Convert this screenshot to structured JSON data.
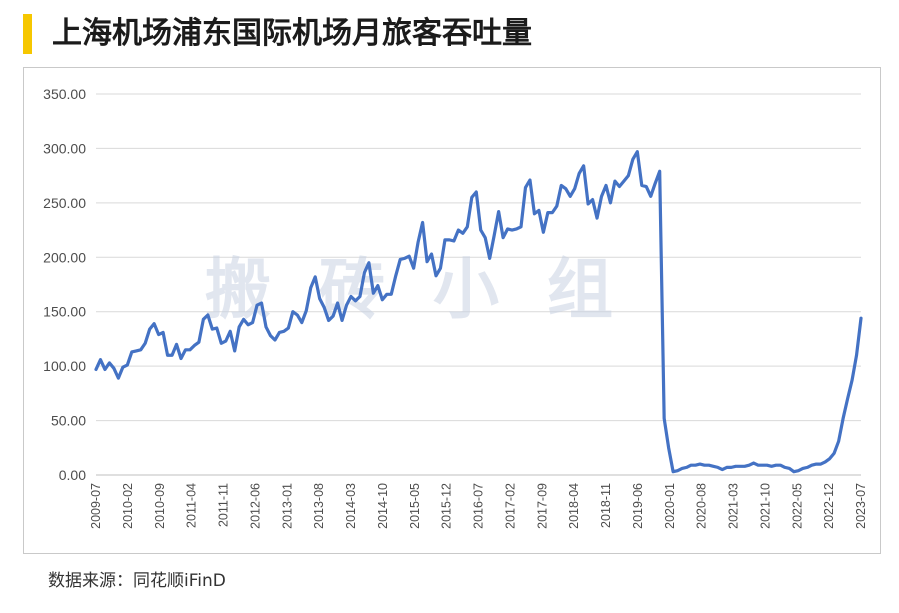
{
  "title": "上海机场浦东国际机场月旅客吞吐量",
  "source": "数据来源：同花顺iFinD",
  "watermark": "搬砖小组",
  "colors": {
    "accent": "#f6c700",
    "line": "#4472c4",
    "grid": "#d9d9d9"
  },
  "chart_data": {
    "type": "line",
    "title": "上海机场浦东国际机场月旅客吞吐量",
    "xlabel": "",
    "ylabel": "",
    "ylim": [
      0,
      350
    ],
    "yticks": [
      "0.00",
      "50.00",
      "100.00",
      "150.00",
      "200.00",
      "250.00",
      "300.00",
      "350.00"
    ],
    "xticks": [
      "2009-07",
      "2010-02",
      "2010-09",
      "2011-04",
      "2011-11",
      "2012-06",
      "2013-01",
      "2013-08",
      "2014-03",
      "2014-10",
      "2015-05",
      "2015-12",
      "2016-07",
      "2017-02",
      "2017-09",
      "2018-04",
      "2018-11",
      "2019-06",
      "2020-01",
      "2020-08",
      "2021-03",
      "2021-10",
      "2022-05",
      "2022-12",
      "2023-07"
    ],
    "grid": true,
    "x_start": "2009-07",
    "x_end": "2023-07",
    "series": [
      {
        "values": [
          97,
          106,
          97,
          103,
          98,
          89,
          99,
          101,
          113,
          114,
          115,
          121,
          134,
          139,
          129,
          131,
          110,
          110,
          120,
          107,
          115,
          115,
          119,
          122,
          143,
          147,
          134,
          135,
          121,
          123,
          132,
          114,
          136,
          143,
          138,
          140,
          156,
          158,
          136,
          128,
          124,
          131,
          132,
          135,
          150,
          147,
          140,
          151,
          172,
          182,
          162,
          154,
          142,
          146,
          158,
          142,
          156,
          164,
          160,
          164,
          186,
          195,
          167,
          174,
          161,
          166,
          166,
          183,
          198,
          199,
          201,
          190,
          214,
          232,
          196,
          203,
          183,
          190,
          216,
          216,
          215,
          225,
          222,
          228,
          255,
          260,
          225,
          218,
          199,
          220,
          242,
          218,
          226,
          225,
          226,
          228,
          264,
          271,
          240,
          243,
          223,
          241,
          241,
          247,
          266,
          263,
          256,
          263,
          277,
          284,
          249,
          253,
          236,
          256,
          266,
          250,
          270,
          265,
          270,
          275,
          290,
          297,
          266,
          265,
          256,
          268,
          279,
          52,
          25,
          3,
          4,
          6,
          7,
          9,
          9,
          10,
          9,
          9,
          8,
          7,
          5,
          7,
          7,
          8,
          8,
          8,
          9,
          11,
          9,
          9,
          9,
          8,
          9,
          9,
          7,
          6,
          3,
          4,
          6,
          7,
          9,
          10,
          10,
          12,
          15,
          20,
          31,
          52,
          70,
          87,
          110,
          144
        ]
      }
    ]
  }
}
